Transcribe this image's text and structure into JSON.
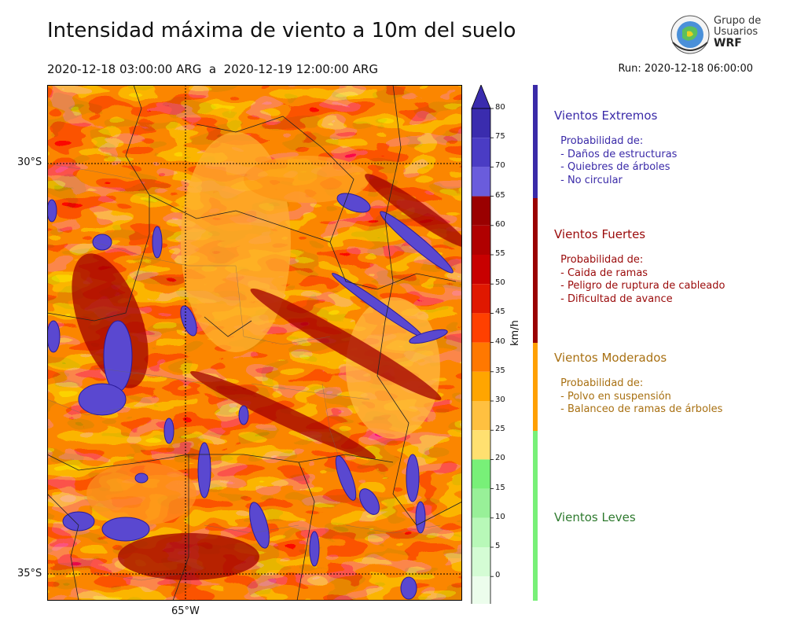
{
  "title": "Intensidad máxima de viento a 10m del suelo",
  "period": "2020-12-18 03:00:00 ARG  a  2020-12-19 12:00:00 ARG",
  "run": "Run: 2020-12-18 06:00:00",
  "logo": {
    "line1": "Grupo de",
    "line2": "Usuarios",
    "line3": "WRF"
  },
  "map": {
    "lat_labels": [
      "30°S",
      "35°S"
    ],
    "lon_labels": [
      "65°W"
    ]
  },
  "colorbar": {
    "unit": "km/h",
    "ticks": [
      "80",
      "75",
      "70",
      "65",
      "60",
      "55",
      "50",
      "45",
      "40",
      "35",
      "30",
      "25",
      "20",
      "15",
      "10",
      "5",
      "0"
    ],
    "colors": [
      "#3a2cae",
      "#4a3cc4",
      "#6a5cdc",
      "#9a0000",
      "#b00000",
      "#c80000",
      "#e01800",
      "#ff4000",
      "#ff7800",
      "#ffa500",
      "#ffc040",
      "#ffe070",
      "#78f078",
      "#98f098",
      "#b8f8b8",
      "#d4fcd4",
      "#ecfdec"
    ],
    "extend_top": "#3a2cae",
    "extend_bottom": "#f4fff4"
  },
  "categories": [
    {
      "name": "Vientos Extremos",
      "color": "#3a2aa8",
      "bar": "#3a2aa8",
      "desc": " Probabilidad de:\n - Daños de estructuras\n - Quiebres de árboles\n - No circular"
    },
    {
      "name": "Vientos Fuertes",
      "color": "#9a0a0a",
      "bar": "#9a0000",
      "desc": " Probabilidad de:\n - Caida de ramas\n - Peligro de ruptura de cableado\n - Dificultad de avance"
    },
    {
      "name": "Vientos Moderados",
      "color": "#a87012",
      "bar": "#ffa000",
      "desc": " Probabilidad de:\n - Polvo en suspensión\n - Balanceo de ramas de árboles"
    },
    {
      "name": "Vientos Leves",
      "color": "#2e7a2e",
      "bar": "#78f078",
      "desc": ""
    }
  ]
}
